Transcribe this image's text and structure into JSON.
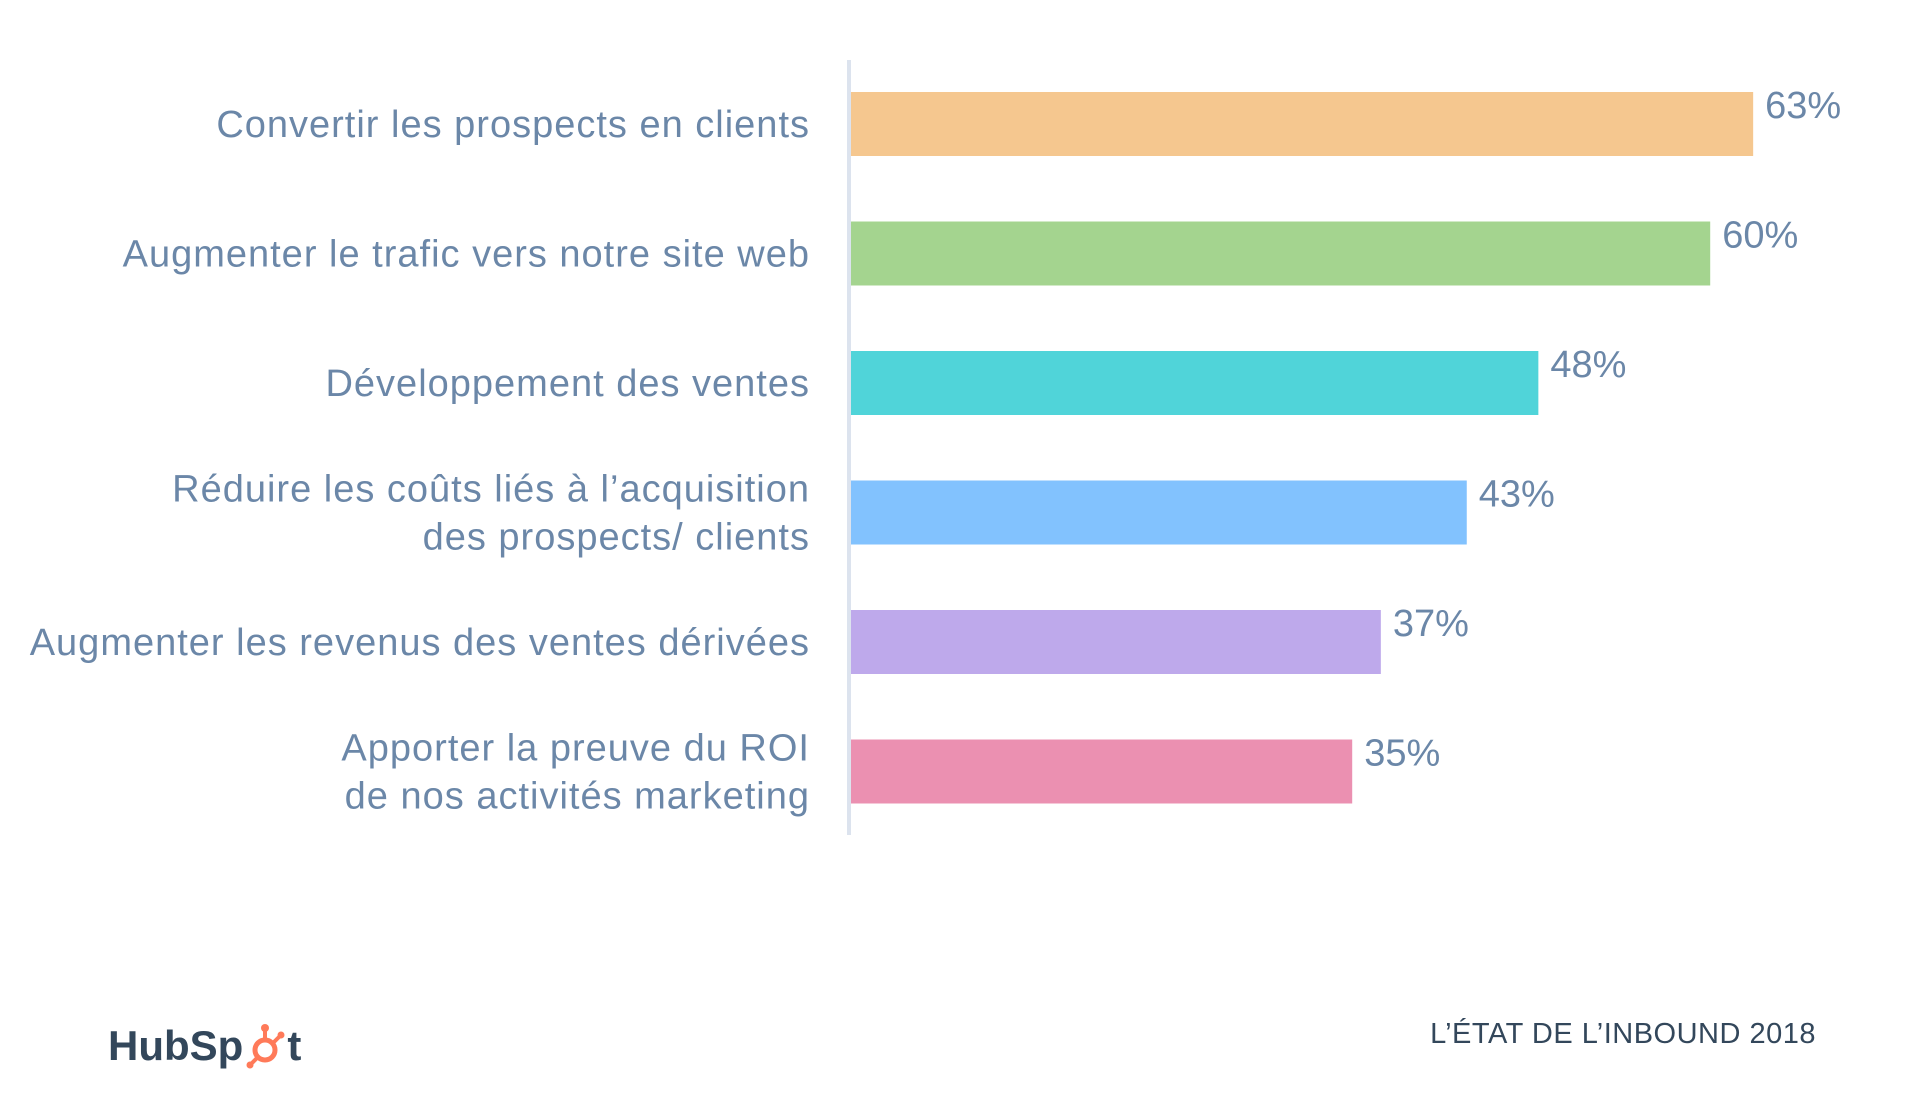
{
  "chart_data": {
    "type": "bar",
    "orientation": "horizontal",
    "categories": [
      [
        "Convertir les prospects en clients"
      ],
      [
        "Augmenter le trafic vers notre site web"
      ],
      [
        "Développement des ventes"
      ],
      [
        "Réduire les coûts liés à l’acquisition",
        "des prospects/ clients"
      ],
      [
        "Augmenter les revenus des ventes dérivées"
      ],
      [
        "Apporter la preuve du ROI",
        "de nos activités marketing"
      ]
    ],
    "values": [
      63,
      60,
      48,
      43,
      37,
      35
    ],
    "value_labels": [
      "63%",
      "60%",
      "48%",
      "43%",
      "37%",
      "35%"
    ],
    "colors": [
      "#f5c78f",
      "#a4d48f",
      "#50d4d9",
      "#82c2fe",
      "#bea9eb",
      "#eb90b1"
    ],
    "xlim": [
      0,
      100
    ],
    "grid": false
  },
  "footer": {
    "logo_text_left": "HubSp",
    "logo_text_right": "t",
    "source": "L’ÉTAT DE L’INBOUND 2018"
  },
  "colors": {
    "label_text": "#6b87a8",
    "axis_line": "#dce3ee",
    "logo_text": "#33475b",
    "logo_accent": "#ff7a59"
  }
}
